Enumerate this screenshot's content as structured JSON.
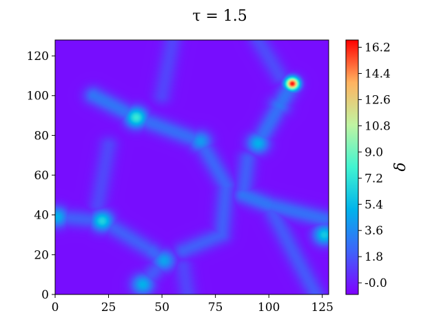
{
  "chart_data": {
    "type": "heatmap",
    "title": "τ = 1.5",
    "xlabel": "",
    "ylabel": "",
    "colorbar_label": "δ",
    "colormap": "rainbow",
    "colormap_stops": [
      "#8000ff",
      "#4062fa",
      "#01b3eb",
      "#41f4d1",
      "#c0f4a2",
      "#ffb360",
      "#ff0000"
    ],
    "background_color": "#8a1cff",
    "xlim": [
      0,
      128
    ],
    "ylim": [
      0,
      128
    ],
    "xticks": [
      0,
      25,
      50,
      75,
      100,
      125
    ],
    "yticks": [
      0,
      20,
      40,
      60,
      80,
      100,
      120
    ],
    "color_range": [
      -0.8,
      16.7
    ],
    "colorbar_ticks": [
      "-0.0",
      "1.8",
      "3.6",
      "5.4",
      "7.2",
      "9.0",
      "10.8",
      "12.6",
      "14.4",
      "16.2"
    ],
    "colorbar_tick_values": [
      0.0,
      1.8,
      3.6,
      5.4,
      7.2,
      9.0,
      10.8,
      12.6,
      14.4,
      16.2
    ],
    "peaks": [
      {
        "x": 38,
        "y": 89,
        "value": 7.5
      },
      {
        "x": 22,
        "y": 37,
        "value": 6.5
      },
      {
        "x": 95,
        "y": 76,
        "value": 5.0
      },
      {
        "x": 68,
        "y": 77,
        "value": 4.2
      },
      {
        "x": 111,
        "y": 106,
        "value": 16.4
      },
      {
        "x": 51,
        "y": 17,
        "value": 4.5
      },
      {
        "x": 41,
        "y": 5,
        "value": 5.0
      },
      {
        "x": 126,
        "y": 30,
        "value": 6.0
      },
      {
        "x": 1,
        "y": 39,
        "value": 5.0
      },
      {
        "x": 105,
        "y": 95,
        "value": 3.0
      }
    ],
    "filaments": [
      {
        "from": [
          18,
          100
        ],
        "to": [
          38,
          89
        ],
        "value": 2.8
      },
      {
        "from": [
          38,
          89
        ],
        "to": [
          68,
          77
        ],
        "value": 2.5
      },
      {
        "from": [
          68,
          77
        ],
        "to": [
          80,
          55
        ],
        "value": 2.2
      },
      {
        "from": [
          80,
          55
        ],
        "to": [
          78,
          30
        ],
        "value": 2.0
      },
      {
        "from": [
          78,
          30
        ],
        "to": [
          60,
          22
        ],
        "value": 2.0
      },
      {
        "from": [
          22,
          37
        ],
        "to": [
          45,
          22
        ],
        "value": 2.0
      },
      {
        "from": [
          45,
          22
        ],
        "to": [
          51,
          17
        ],
        "value": 2.2
      },
      {
        "from": [
          51,
          17
        ],
        "to": [
          41,
          5
        ],
        "value": 1.8
      },
      {
        "from": [
          95,
          76
        ],
        "to": [
          105,
          95
        ],
        "value": 2.6
      },
      {
        "from": [
          105,
          95
        ],
        "to": [
          111,
          106
        ],
        "value": 2.8
      },
      {
        "from": [
          90,
          68
        ],
        "to": [
          88,
          50
        ],
        "value": 2.0
      },
      {
        "from": [
          88,
          50
        ],
        "to": [
          100,
          45
        ],
        "value": 2.8
      },
      {
        "from": [
          100,
          45
        ],
        "to": [
          126,
          38
        ],
        "value": 2.6
      },
      {
        "from": [
          100,
          45
        ],
        "to": [
          112,
          20
        ],
        "value": 1.8
      },
      {
        "from": [
          112,
          20
        ],
        "to": [
          122,
          0
        ],
        "value": 1.8
      },
      {
        "from": [
          1,
          39
        ],
        "to": [
          22,
          37
        ],
        "value": 2.0
      },
      {
        "from": [
          25,
          75
        ],
        "to": [
          20,
          45
        ],
        "value": 1.3
      },
      {
        "from": [
          55,
          128
        ],
        "to": [
          50,
          100
        ],
        "value": 1.2
      },
      {
        "from": [
          95,
          128
        ],
        "to": [
          105,
          110
        ],
        "value": 1.4
      },
      {
        "from": [
          62,
          0
        ],
        "to": [
          60,
          14
        ],
        "value": 1.2
      }
    ]
  }
}
